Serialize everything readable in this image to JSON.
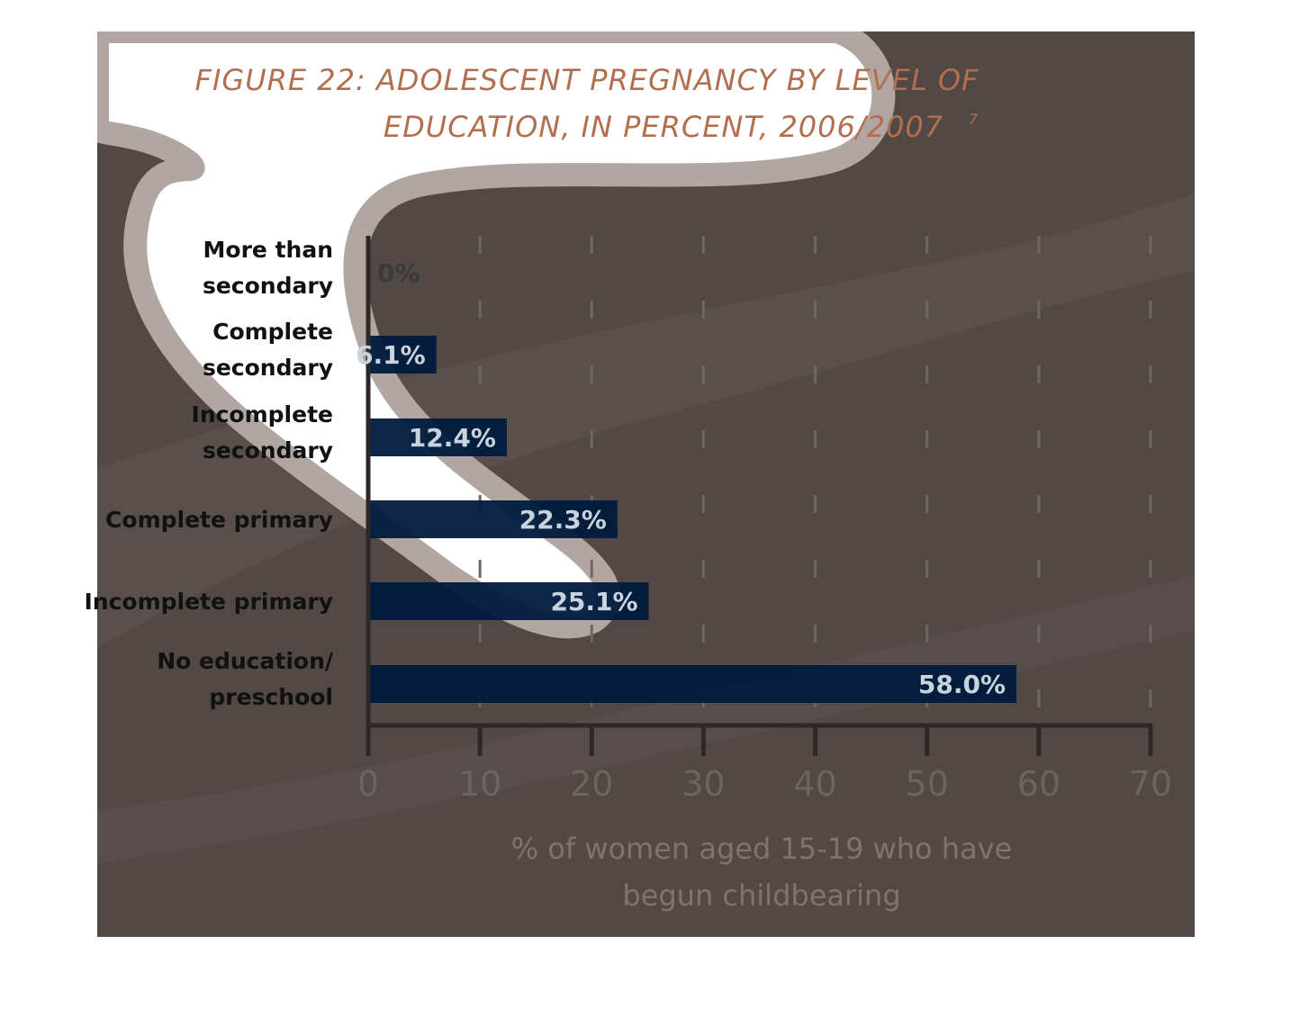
{
  "colors": {
    "panel": "#524846",
    "bar": "#011b3d",
    "axis": "#2d2826",
    "grid": "#6f6764",
    "swirl_light": "#ffffff",
    "swirl_edge": "#b2a6a3"
  },
  "chart_data": {
    "type": "bar",
    "orientation": "horizontal",
    "title_line1": "FIGURE 22: ADOLESCENT PREGNANCY BY LEVEL OF",
    "title_line2": "EDUCATION, IN PERCENT, 2006/2007",
    "title_footnote": "7",
    "xlabel_line1": "% of women aged 15-19 who have",
    "xlabel_line2": "begun childbearing",
    "ylabel": "",
    "xlim": [
      0,
      70
    ],
    "x_ticks": [
      "0",
      "10",
      "20",
      "30",
      "40",
      "50",
      "60",
      "70"
    ],
    "grid": "vertical-dashed",
    "categories": [
      {
        "line1": "More than",
        "line2": "secondary"
      },
      {
        "line1": "Complete",
        "line2": "secondary"
      },
      {
        "line1": "Incomplete",
        "line2": "secondary"
      },
      {
        "line1": "Complete primary",
        "line2": ""
      },
      {
        "line1": "Incomplete primary",
        "line2": ""
      },
      {
        "line1": "No education/",
        "line2": "preschool"
      }
    ],
    "values": [
      0,
      6.1,
      12.4,
      22.3,
      25.1,
      58.0
    ],
    "value_labels": [
      "0%",
      "6.1%",
      "12.4%",
      "22.3%",
      "25.1%",
      "58.0%"
    ]
  }
}
